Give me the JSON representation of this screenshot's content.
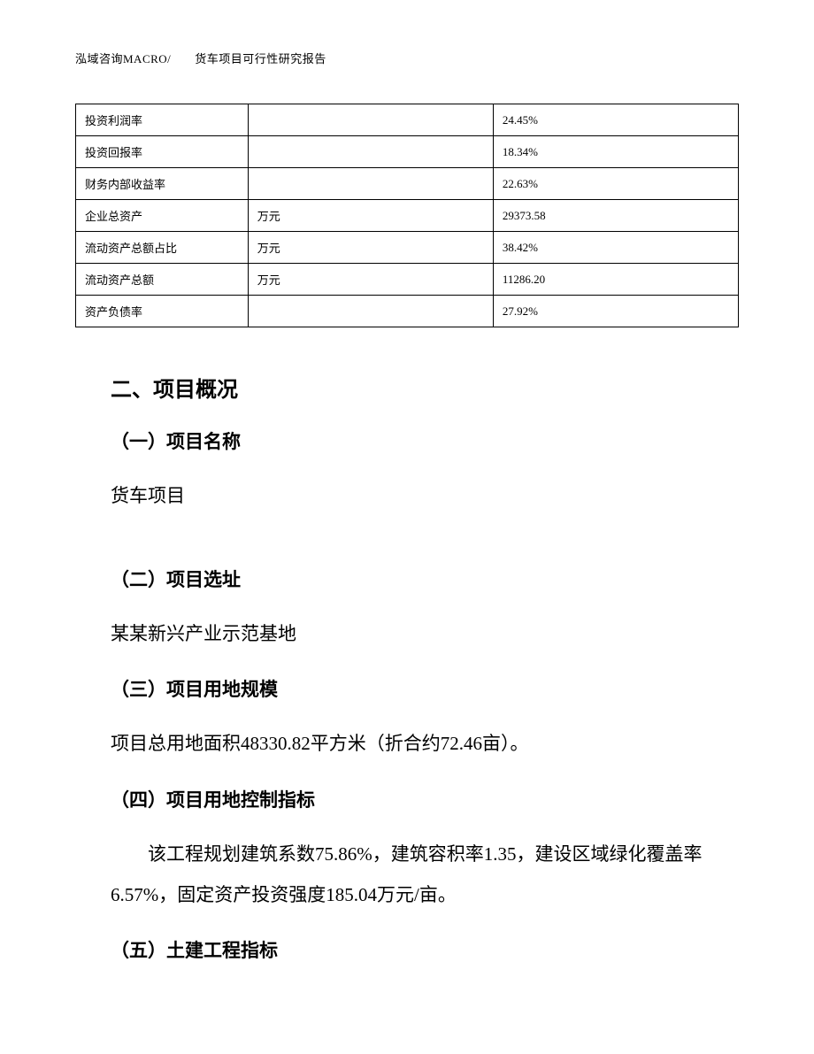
{
  "header": {
    "text": "泓域咨询MACRO/　　货车项目可行性研究报告"
  },
  "table": {
    "rows": [
      {
        "label": "投资利润率",
        "unit": "",
        "value": "24.45%"
      },
      {
        "label": "投资回报率",
        "unit": "",
        "value": "18.34%"
      },
      {
        "label": "财务内部收益率",
        "unit": "",
        "value": "22.63%"
      },
      {
        "label": "企业总资产",
        "unit": "万元",
        "value": "29373.58"
      },
      {
        "label": "流动资产总额占比",
        "unit": "万元",
        "value": "38.42%"
      },
      {
        "label": "流动资产总额",
        "unit": "万元",
        "value": "11286.20"
      },
      {
        "label": "资产负债率",
        "unit": "",
        "value": "27.92%"
      }
    ]
  },
  "sections": {
    "main_title": "二、项目概况",
    "s1": {
      "title": "（一）项目名称",
      "body": "货车项目"
    },
    "s2": {
      "title": "（二）项目选址",
      "body": "某某新兴产业示范基地"
    },
    "s3": {
      "title": "（三）项目用地规模",
      "body": "项目总用地面积48330.82平方米（折合约72.46亩）。"
    },
    "s4": {
      "title": "（四）项目用地控制指标",
      "body": "该工程规划建筑系数75.86%，建筑容积率1.35，建设区域绿化覆盖率6.57%，固定资产投资强度185.04万元/亩。"
    },
    "s5": {
      "title": "（五）土建工程指标"
    }
  }
}
